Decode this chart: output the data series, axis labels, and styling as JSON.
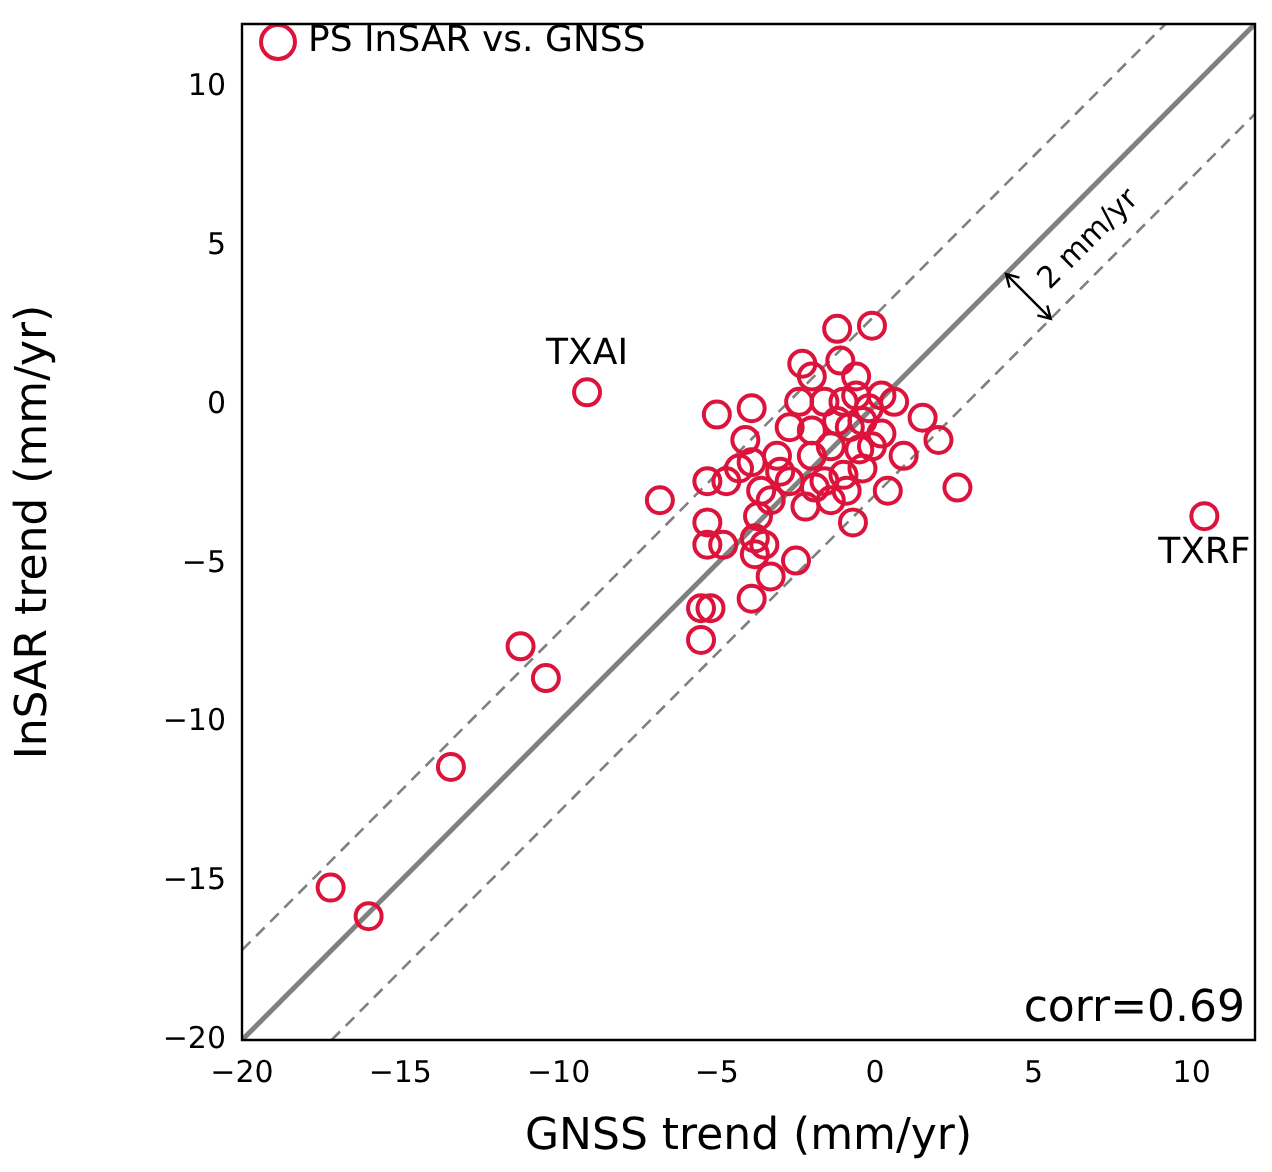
{
  "chart_data": {
    "type": "scatter",
    "xlabel": "GNSS trend (mm/yr)",
    "ylabel": "InSAR trend (mm/yr)",
    "xlim": [
      -20,
      12
    ],
    "ylim": [
      -20,
      12
    ],
    "xticks": [
      -20,
      -15,
      -10,
      -5,
      0,
      5,
      10
    ],
    "yticks": [
      -20,
      -15,
      -10,
      -5,
      0,
      5,
      10
    ],
    "grid": false,
    "legend": "top left",
    "series": [
      {
        "name": "PS InSAR vs. GNSS",
        "color": "#dc143c",
        "marker": "circle",
        "x": [
          -9.1,
          10.4,
          -17.2,
          -16.0,
          -13.4,
          -11.2,
          -10.4,
          -6.8,
          -5.5,
          -5.2,
          -5.5,
          -3.9,
          -3.8,
          2.0,
          1.5,
          2.6,
          0.4,
          -0.1,
          -1.2,
          -2.3,
          -2.0,
          -0.6,
          -1.1,
          -5.0,
          -3.9,
          -5.3,
          -5.3,
          -5.3,
          -4.8,
          -3.7,
          -3.5,
          -3.8,
          -3.3,
          -2.5,
          -0.7,
          -2.7,
          -2.0,
          -1.4,
          -0.8,
          -0.2,
          0.2,
          0.6,
          -1.6,
          -2.7,
          -3.1,
          -4.1,
          -4.3,
          -4.7,
          -3.3,
          -2.2,
          -1.4,
          -1.0,
          -0.4,
          -0.1,
          -0.6,
          -1.0,
          -1.6,
          0.9,
          0.2,
          -2.0,
          -1.2,
          -0.5,
          -3.0,
          -3.6,
          -1.9,
          -0.9,
          -3.9,
          -2.4,
          -0.4
        ],
        "values": [
          0.4,
          -3.5,
          -15.2,
          -16.1,
          -11.4,
          -7.6,
          -8.6,
          -3.0,
          -6.4,
          -6.4,
          -7.4,
          -6.1,
          -4.2,
          -1.1,
          -0.4,
          -2.6,
          -2.7,
          2.5,
          2.4,
          1.3,
          0.9,
          0.9,
          1.4,
          -0.3,
          -0.1,
          -2.4,
          -3.7,
          -4.4,
          -4.4,
          -3.5,
          -4.4,
          -4.7,
          -5.4,
          -4.9,
          -3.7,
          -0.7,
          -1.6,
          -1.3,
          -0.7,
          -0.1,
          0.3,
          0.1,
          -2.4,
          -2.4,
          -1.6,
          -1.1,
          -2.0,
          -2.4,
          -3.0,
          -3.2,
          -3.0,
          -2.2,
          -2.0,
          -1.3,
          0.3,
          0.1,
          0.1,
          -1.6,
          -0.9,
          -0.8,
          -0.5,
          -1.4,
          -2.1,
          -2.7,
          -2.6,
          -2.7,
          -1.8,
          0.1,
          -0.5
        ]
      },
      {
        "type": "line",
        "color": "#808080",
        "line_style": "solid",
        "marker": "none",
        "x": [
          -20,
          12
        ],
        "values": [
          -20,
          12
        ]
      },
      {
        "type": "line",
        "color": "#808080",
        "line_style": "dashed",
        "marker": "none",
        "x": [
          -20,
          9.17
        ],
        "values": [
          -17.17,
          12
        ]
      },
      {
        "type": "line",
        "color": "#808080",
        "line_style": "dashed",
        "marker": "none",
        "x": [
          -17.17,
          12
        ],
        "values": [
          -20,
          9.17
        ]
      }
    ],
    "annotations": [
      {
        "text": "TXAI",
        "x": -9.1,
        "y": 0.4
      },
      {
        "text": "TXRF",
        "x": 10.4,
        "y": -3.5
      },
      "2 mm/yr",
      "corr=0.69"
    ]
  }
}
